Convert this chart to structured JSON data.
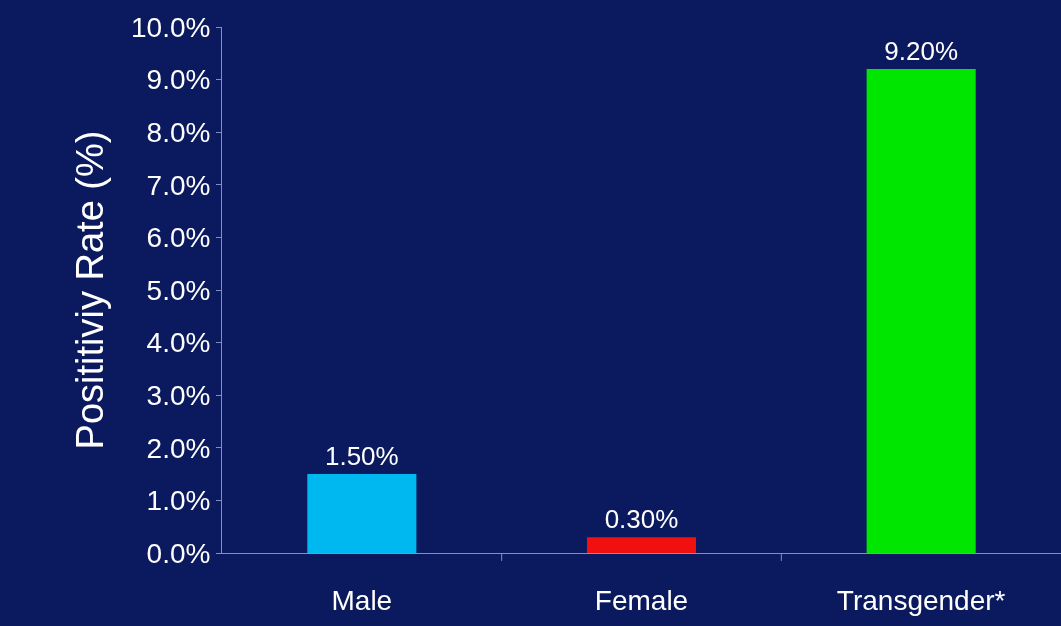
{
  "chart_data": {
    "type": "bar",
    "ylabel": "Posititiviy Rate (%)",
    "categories": [
      "Male",
      "Female",
      "Transgender*"
    ],
    "values": [
      1.5,
      0.3,
      9.2
    ],
    "colors": [
      "#00b8f0",
      "#f01010",
      "#00e600"
    ],
    "value_labels": [
      "1.50%",
      "0.30%",
      "9.20%"
    ],
    "ylim": [
      0,
      10
    ],
    "yticks": [
      {
        "value": 0,
        "label": "0.0%"
      },
      {
        "value": 1,
        "label": "1.0%"
      },
      {
        "value": 2,
        "label": "2.0%"
      },
      {
        "value": 3,
        "label": "3.0%"
      },
      {
        "value": 4,
        "label": "4.0%"
      },
      {
        "value": 5,
        "label": "5.0%"
      },
      {
        "value": 6,
        "label": "6.0%"
      },
      {
        "value": 7,
        "label": "7.0%"
      },
      {
        "value": 8,
        "label": "8.0%"
      },
      {
        "value": 9,
        "label": "9.0%"
      },
      {
        "value": 10,
        "label": "10.0%"
      }
    ],
    "grid": false,
    "legend": false
  }
}
